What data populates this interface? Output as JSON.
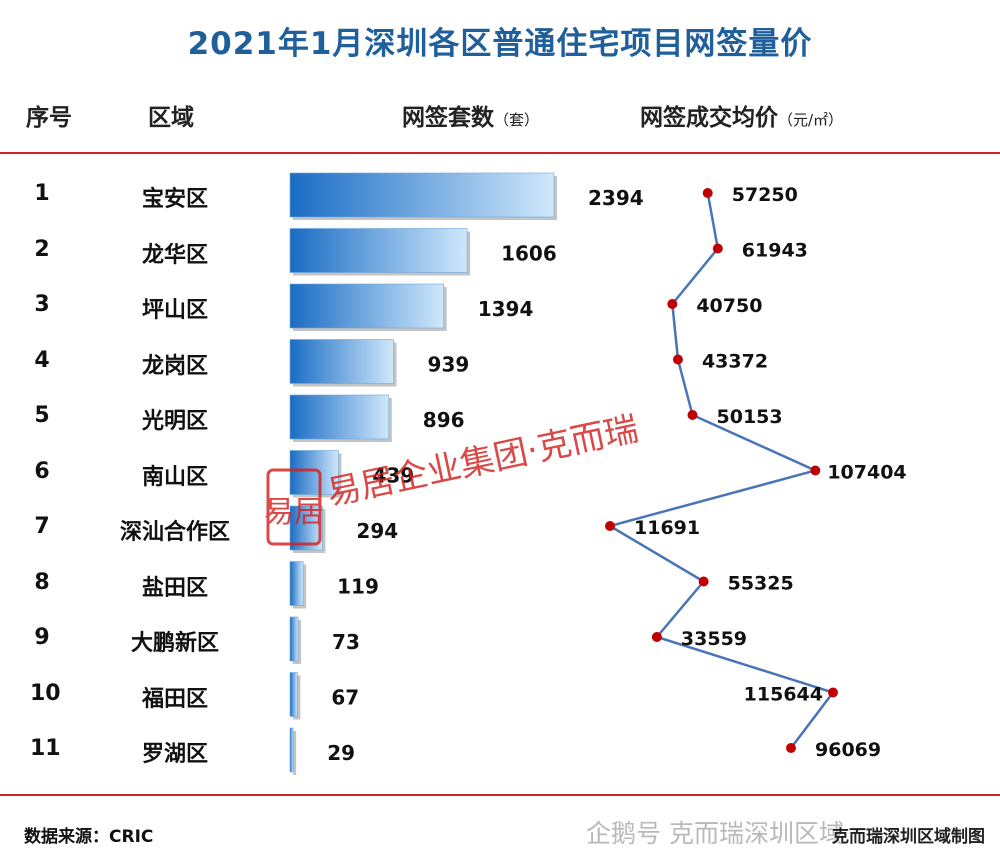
{
  "title": "2021年1月深圳各区普通住宅项目网签量价",
  "headers": {
    "index": "序号",
    "district": "区域",
    "units": "网签套数",
    "units_unit": "（套）",
    "price": "网签成交均价",
    "price_unit": "（元/㎡）"
  },
  "chart_data": {
    "type": "bar",
    "title": "2021年1月深圳各区普通住宅项目网签量价",
    "categories": [
      "宝安区",
      "龙华区",
      "坪山区",
      "龙岗区",
      "光明区",
      "南山区",
      "深汕合作区",
      "盐田区",
      "大鹏新区",
      "福田区",
      "罗湖区"
    ],
    "index": [
      "1",
      "2",
      "3",
      "4",
      "5",
      "6",
      "7",
      "8",
      "9",
      "10",
      "11"
    ],
    "series": [
      {
        "name": "网签套数（套）",
        "type": "bar",
        "values": [
          2394,
          1606,
          1394,
          939,
          896,
          439,
          294,
          119,
          73,
          67,
          29
        ]
      },
      {
        "name": "网签成交均价（元/㎡）",
        "type": "line",
        "values": [
          57250,
          61943,
          40750,
          43372,
          50153,
          107404,
          11691,
          55325,
          33559,
          115644,
          96069
        ]
      }
    ],
    "bar_range": [
      0,
      2394
    ],
    "price_range": [
      11691,
      115644
    ],
    "legend": "none",
    "grid": false
  },
  "watermark": {
    "stamp": "易居",
    "text": "易居企业集团·克而瑞"
  },
  "colors": {
    "title": "#1f5f9b",
    "rule": "#c9242b",
    "bar_dark": "#1a6cc4",
    "bar_light": "#cfe8fb",
    "line": "#4a74b8",
    "marker": "#c00000",
    "watermark": "#d42020"
  },
  "footer": {
    "source": "数据来源：CRIC",
    "platform_watermark": "企鹅号 克而瑞深圳区域",
    "map_credit": "克而瑞深圳区域制图"
  }
}
